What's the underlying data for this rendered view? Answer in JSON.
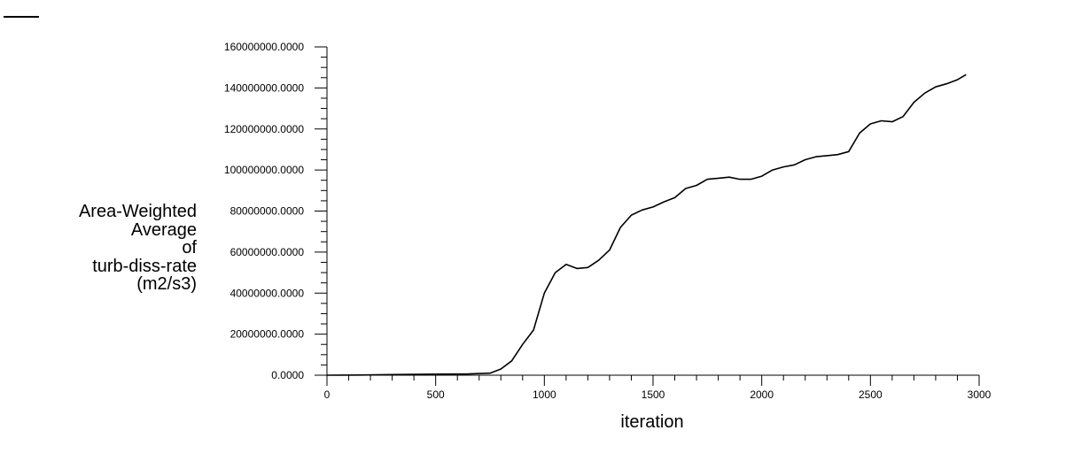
{
  "chart_data": {
    "type": "line",
    "title": "",
    "xlabel": "iteration",
    "ylabel_lines": [
      "Area-Weighted",
      "Average",
      "of",
      "turb-diss-rate",
      "(m2/s3)"
    ],
    "xlim": [
      0,
      3000
    ],
    "ylim": [
      0,
      160000000
    ],
    "x_ticks": [
      0,
      500,
      1000,
      1500,
      2000,
      2500,
      3000
    ],
    "x_tick_labels": [
      "0",
      "500",
      "1000",
      "1500",
      "2000",
      "2500",
      "3000"
    ],
    "y_ticks": [
      0,
      20000000,
      40000000,
      60000000,
      80000000,
      100000000,
      120000000,
      140000000,
      160000000
    ],
    "y_tick_labels": [
      "0.0000",
      "20000000.0000",
      "40000000.0000",
      "60000000.0000",
      "80000000.0000",
      "100000000.0000",
      "120000000.0000",
      "140000000.0000",
      "160000000.0000"
    ],
    "grid": false,
    "series": [
      {
        "color": "#000000",
        "x": [
          0,
          150,
          300,
          500,
          650,
          750,
          800,
          850,
          900,
          950,
          1000,
          1050,
          1100,
          1150,
          1200,
          1250,
          1300,
          1350,
          1400,
          1450,
          1500,
          1550,
          1600,
          1650,
          1700,
          1750,
          1800,
          1850,
          1900,
          1950,
          2000,
          2050,
          2100,
          2150,
          2200,
          2250,
          2300,
          2350,
          2400,
          2450,
          2500,
          2550,
          2600,
          2650,
          2700,
          2750,
          2800,
          2850,
          2900,
          2940
        ],
        "y": [
          0,
          100000,
          300000,
          500000,
          600000,
          1000000,
          3000000,
          7000000,
          15000000,
          22000000,
          40000000,
          50000000,
          54000000,
          52000000,
          52500000,
          56000000,
          61000000,
          72000000,
          78000000,
          80500000,
          82000000,
          84500000,
          86500000,
          91000000,
          92500000,
          95500000,
          96000000,
          96500000,
          95500000,
          95500000,
          97000000,
          100000000,
          101500000,
          102500000,
          105000000,
          106500000,
          107000000,
          107500000,
          109000000,
          118000000,
          122500000,
          124000000,
          123500000,
          126000000,
          133000000,
          137500000,
          140500000,
          142000000,
          144000000,
          146500000
        ]
      }
    ]
  }
}
